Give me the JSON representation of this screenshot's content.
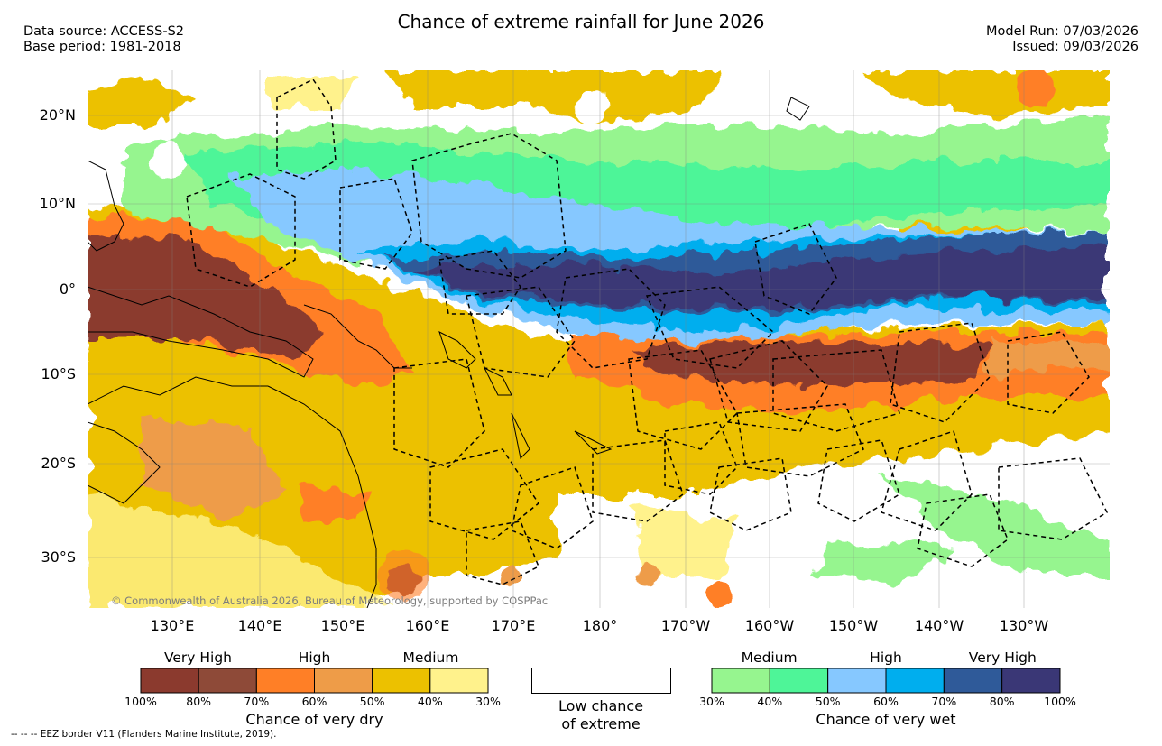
{
  "header": {
    "title": "Chance of extreme rainfall for June 2026",
    "data_source": "Data source: ACCESS-S2",
    "base_period": "Base period: 1981-2018",
    "model_run": "Model Run: 07/03/2026",
    "issued": "Issued: 09/03/2026"
  },
  "map": {
    "copyright": "© Commonwealth of Australia 2026, Bureau of Meteorology, supported by COSPPac",
    "lat_labels": [
      "20°N",
      "10°N",
      "0°",
      "10°S",
      "20°S",
      "30°S"
    ],
    "lon_labels": [
      "130°E",
      "140°E",
      "150°E",
      "160°E",
      "170°E",
      "180°",
      "170°W",
      "160°W",
      "150°W",
      "140°W",
      "130°W"
    ]
  },
  "legend": {
    "dry": {
      "title": "Chance of very dry",
      "categories": [
        "Very High",
        "High",
        "Medium"
      ],
      "colors": [
        "#8b3a2e",
        "#8e4a38",
        "#ff7f26",
        "#ee9c48",
        "#ecc100",
        "#fff28c"
      ],
      "ticks": [
        "100%",
        "80%",
        "70%",
        "60%",
        "50%",
        "40%",
        "30%"
      ]
    },
    "neutral": {
      "line1": "Low chance",
      "line2": "of extreme",
      "color": "#ffffff"
    },
    "wet": {
      "title": "Chance of very wet",
      "categories": [
        "Medium",
        "High",
        "Very High"
      ],
      "colors": [
        "#96f58f",
        "#4ef598",
        "#86c8ff",
        "#00aeee",
        "#2f5a99",
        "#3a3776"
      ],
      "ticks": [
        "30%",
        "40%",
        "50%",
        "60%",
        "70%",
        "80%",
        "100%"
      ]
    }
  },
  "footnote": "-- -- -- EEZ border V11 (Flanders Marine Institute, 2019)."
}
